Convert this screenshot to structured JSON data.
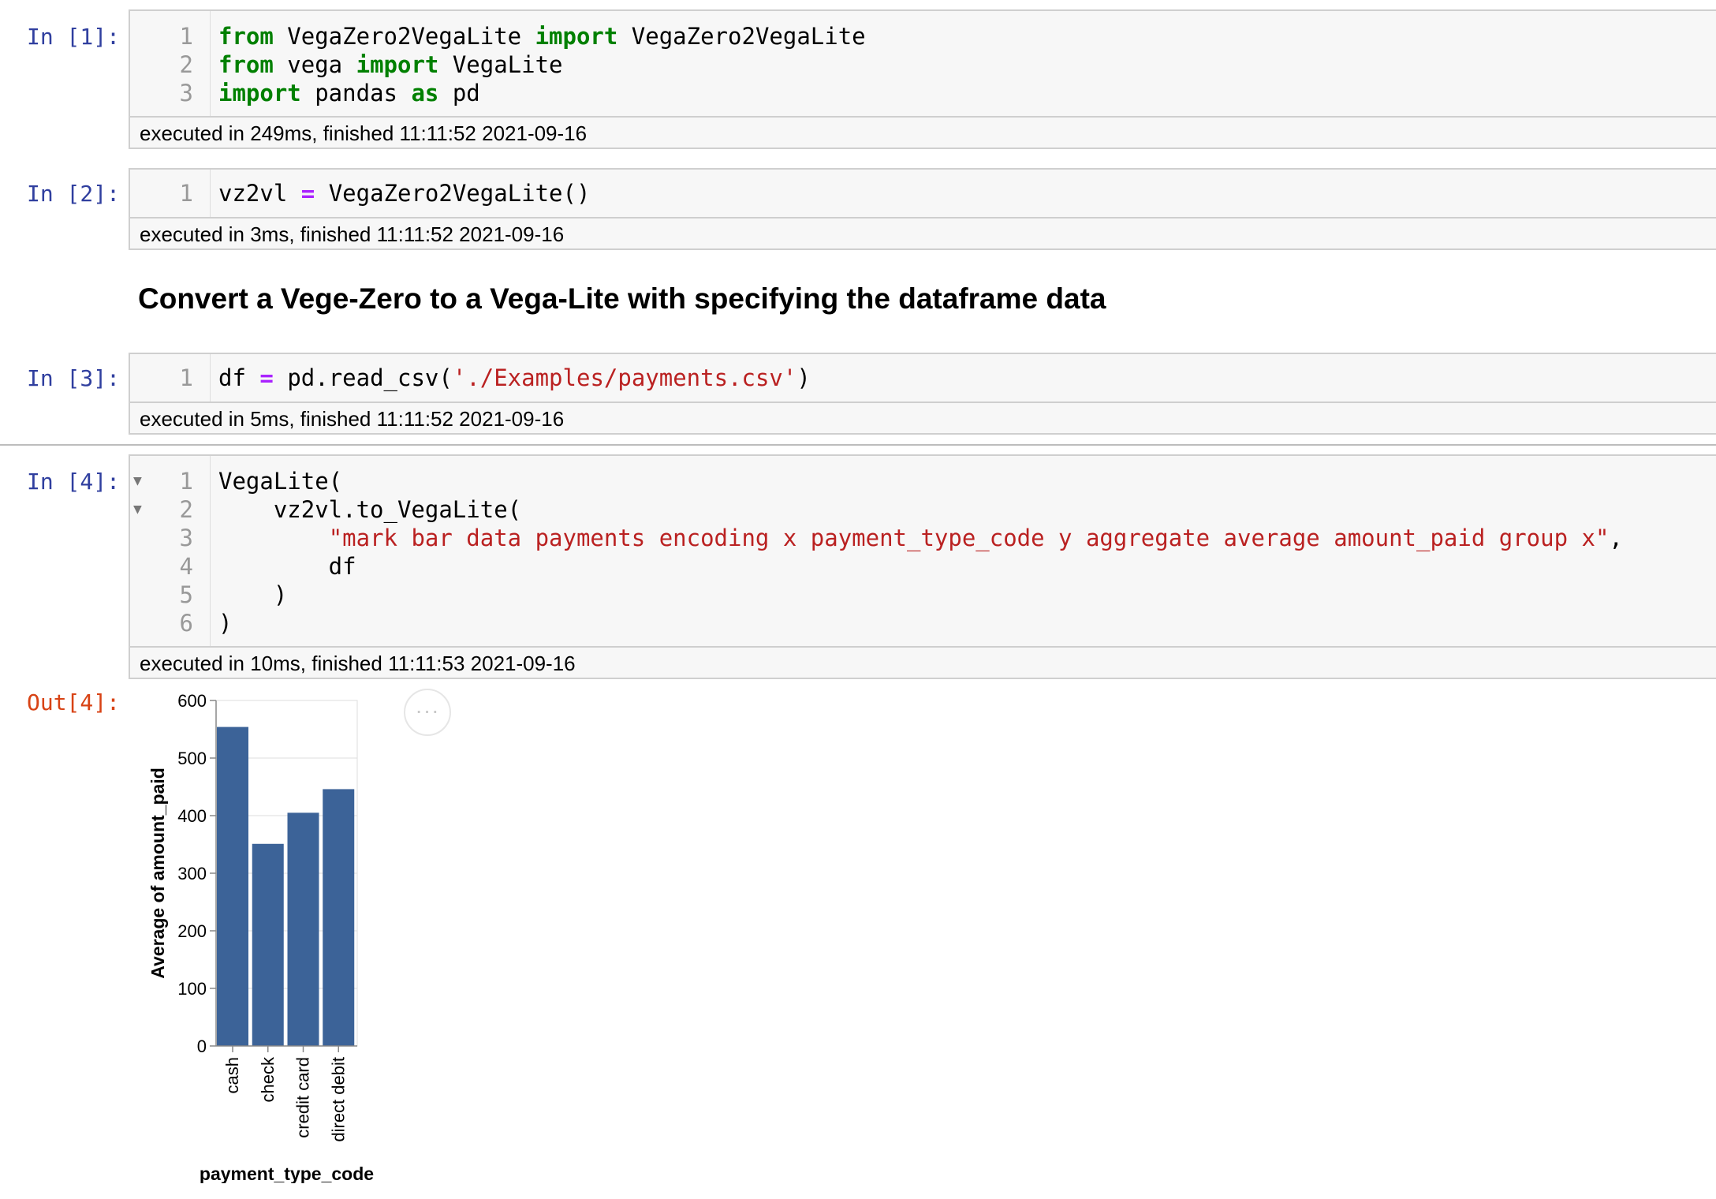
{
  "cells": [
    {
      "prompt": "In [1]:",
      "lines": [
        [
          {
            "t": "from",
            "c": "kw"
          },
          {
            "t": " VegaZero2VegaLite "
          },
          {
            "t": "import",
            "c": "kw"
          },
          {
            "t": " VegaZero2VegaLite"
          }
        ],
        [
          {
            "t": "from",
            "c": "kw"
          },
          {
            "t": " vega "
          },
          {
            "t": "import",
            "c": "kw"
          },
          {
            "t": " VegaLite"
          }
        ],
        [
          {
            "t": "import",
            "c": "kw"
          },
          {
            "t": " pandas "
          },
          {
            "t": "as",
            "c": "kw"
          },
          {
            "t": " pd"
          }
        ]
      ],
      "line_numbers": [
        "1",
        "2",
        "3"
      ],
      "exec": "executed in 249ms, finished 11:11:52 2021-09-16"
    },
    {
      "prompt": "In [2]:",
      "lines": [
        [
          {
            "t": "vz2vl "
          },
          {
            "t": "=",
            "c": "op"
          },
          {
            "t": " VegaZero2VegaLite()"
          }
        ]
      ],
      "line_numbers": [
        "1"
      ],
      "exec": "executed in 3ms, finished 11:11:52 2021-09-16"
    },
    {
      "prompt": "In [3]:",
      "lines": [
        [
          {
            "t": "df "
          },
          {
            "t": "=",
            "c": "op"
          },
          {
            "t": " pd.read_csv("
          },
          {
            "t": "'./Examples/payments.csv'",
            "c": "str"
          },
          {
            "t": ")"
          }
        ]
      ],
      "line_numbers": [
        "1"
      ],
      "exec": "executed in 5ms, finished 11:11:52 2021-09-16"
    },
    {
      "prompt": "In [4]:",
      "lines": [
        [
          {
            "t": "VegaLite("
          }
        ],
        [
          {
            "t": "    vz2vl.to_VegaLite("
          }
        ],
        [
          {
            "t": "        "
          },
          {
            "t": "\"mark bar data payments encoding x payment_type_code y aggregate average amount_paid group x\"",
            "c": "str"
          },
          {
            "t": ","
          }
        ],
        [
          {
            "t": "        df"
          }
        ],
        [
          {
            "t": "    )"
          }
        ],
        [
          {
            "t": ")"
          }
        ]
      ],
      "line_numbers": [
        "1",
        "2",
        "3",
        "4",
        "5",
        "6"
      ],
      "fold_markers": [
        "▼",
        "▼",
        "",
        "",
        "",
        ""
      ],
      "exec": "executed in 10ms, finished 11:11:53 2021-09-16"
    }
  ],
  "markdown_heading": "Convert a Vege-Zero to a Vega-Lite with specifying the dataframe data",
  "output_prompt": "Out[4]:",
  "more_icon": "···",
  "colors": {
    "bar": "#3c6398",
    "prompt_in": "#303f9f",
    "prompt_out": "#d84315",
    "keyword": "#008000",
    "string": "#ba2121",
    "operator": "#aa22ff"
  },
  "chart_data": {
    "type": "bar",
    "categories": [
      "cash",
      "check",
      "credit card",
      "direct debit"
    ],
    "values": [
      554,
      351,
      405,
      446
    ],
    "xlabel": "payment_type_code",
    "ylabel": "Average of amount_paid",
    "ylim": [
      0,
      600
    ],
    "yticks": [
      "0",
      "100",
      "200",
      "300",
      "400",
      "500",
      "600"
    ],
    "grid": true
  }
}
